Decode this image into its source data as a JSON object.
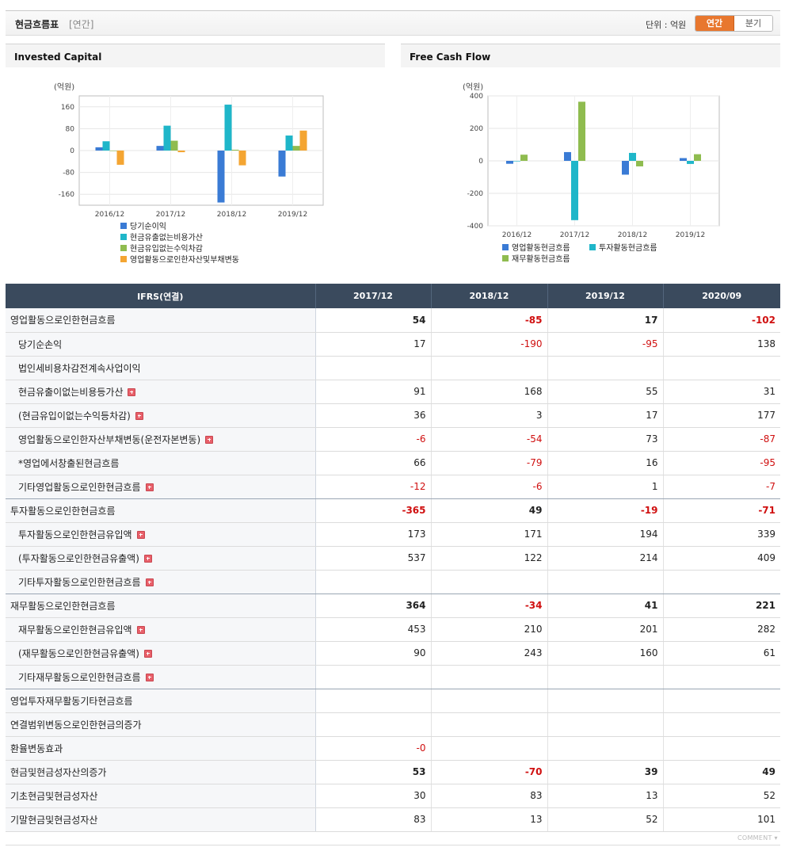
{
  "header": {
    "title": "현금흐름표",
    "sub": "[연간]",
    "unit": "단위 : 억원",
    "tab_annual": "연간",
    "tab_quarter": "분기"
  },
  "colors": {
    "blue": "#3a7bd5",
    "teal": "#1fb6c9",
    "green": "#8fbc4f",
    "orange": "#f4a532",
    "accent": "#e8772e",
    "negative": "#d01010"
  },
  "chart_data": [
    {
      "type": "bar",
      "title": "Invested Capital",
      "unit_label": "(억원)",
      "categories": [
        "2016/12",
        "2017/12",
        "2018/12",
        "2019/12"
      ],
      "ylim": [
        -200,
        200
      ],
      "yticks": [
        160,
        80,
        0,
        -80,
        -160
      ],
      "grid": true,
      "legend_position": "bottom-left",
      "series": [
        {
          "name": "당기순이익",
          "color": "#3a7bd5",
          "values": [
            12,
            17,
            -190,
            -95
          ]
        },
        {
          "name": "현금유출없는비용가산",
          "color": "#1fb6c9",
          "values": [
            34,
            91,
            168,
            55
          ]
        },
        {
          "name": "현금유입없는수익차감",
          "color": "#8fbc4f",
          "values": [
            0,
            36,
            3,
            17
          ]
        },
        {
          "name": "영업활동으로인한자산및부채변동",
          "color": "#f4a532",
          "values": [
            -52,
            -6,
            -54,
            73
          ]
        }
      ]
    },
    {
      "type": "bar",
      "title": "Free Cash Flow",
      "unit_label": "(억원)",
      "categories": [
        "2016/12",
        "2017/12",
        "2018/12",
        "2019/12"
      ],
      "ylim": [
        -400,
        400
      ],
      "yticks": [
        400,
        200,
        0,
        -200,
        -400
      ],
      "grid": true,
      "legend_position": "bottom-center",
      "series": [
        {
          "name": "영업활동현금흐름",
          "color": "#3a7bd5",
          "values": [
            -18,
            54,
            -85,
            17
          ]
        },
        {
          "name": "투자활동현금흐름",
          "color": "#1fb6c9",
          "values": [
            0,
            -365,
            49,
            -19
          ]
        },
        {
          "name": "재무활동현금흐름",
          "color": "#8fbc4f",
          "values": [
            38,
            364,
            -34,
            41
          ]
        }
      ]
    }
  ],
  "table": {
    "col0": "IFRS(연결)",
    "columns": [
      "2017/12",
      "2018/12",
      "2019/12",
      "2020/09"
    ],
    "rows": [
      {
        "label": "영업활동으로인한현금흐름",
        "values": [
          "54",
          "-85",
          "17",
          "-102"
        ],
        "level": 0,
        "bold": true,
        "plus": false
      },
      {
        "label": "당기순손익",
        "values": [
          "17",
          "-190",
          "-95",
          "138"
        ],
        "level": 1,
        "bold": false,
        "plus": false
      },
      {
        "label": "법인세비용차감전계속사업이익",
        "values": [
          "",
          "",
          "",
          ""
        ],
        "level": 1,
        "bold": false,
        "plus": false
      },
      {
        "label": "현금유출이없는비용등가산",
        "values": [
          "91",
          "168",
          "55",
          "31"
        ],
        "level": 1,
        "bold": false,
        "plus": true
      },
      {
        "label": "(현금유입이없는수익등차감)",
        "values": [
          "36",
          "3",
          "17",
          "177"
        ],
        "level": 1,
        "bold": false,
        "plus": true
      },
      {
        "label": "영업활동으로인한자산부채변동(운전자본변동)",
        "values": [
          "-6",
          "-54",
          "73",
          "-87"
        ],
        "level": 1,
        "bold": false,
        "plus": true
      },
      {
        "label": "*영업에서창출된현금흐름",
        "values": [
          "66",
          "-79",
          "16",
          "-95"
        ],
        "level": 1,
        "bold": false,
        "plus": false
      },
      {
        "label": "기타영업활동으로인한현금흐름",
        "values": [
          "-12",
          "-6",
          "1",
          "-7"
        ],
        "level": 1,
        "bold": false,
        "plus": true
      },
      {
        "label": "투자활동으로인한현금흐름",
        "values": [
          "-365",
          "49",
          "-19",
          "-71"
        ],
        "level": 0,
        "bold": true,
        "plus": false
      },
      {
        "label": "투자활동으로인한현금유입액",
        "values": [
          "173",
          "171",
          "194",
          "339"
        ],
        "level": 1,
        "bold": false,
        "plus": true
      },
      {
        "label": "(투자활동으로인한현금유출액)",
        "values": [
          "537",
          "122",
          "214",
          "409"
        ],
        "level": 1,
        "bold": false,
        "plus": true
      },
      {
        "label": "기타투자활동으로인한현금흐름",
        "values": [
          "",
          "",
          "",
          ""
        ],
        "level": 1,
        "bold": false,
        "plus": true
      },
      {
        "label": "재무활동으로인한현금흐름",
        "values": [
          "364",
          "-34",
          "41",
          "221"
        ],
        "level": 0,
        "bold": true,
        "plus": false
      },
      {
        "label": "재무활동으로인한현금유입액",
        "values": [
          "453",
          "210",
          "201",
          "282"
        ],
        "level": 1,
        "bold": false,
        "plus": true
      },
      {
        "label": "(재무활동으로인한현금유출액)",
        "values": [
          "90",
          "243",
          "160",
          "61"
        ],
        "level": 1,
        "bold": false,
        "plus": true
      },
      {
        "label": "기타재무활동으로인한현금흐름",
        "values": [
          "",
          "",
          "",
          ""
        ],
        "level": 1,
        "bold": false,
        "plus": true
      },
      {
        "label": "영업투자재무활동기타현금흐름",
        "values": [
          "",
          "",
          "",
          ""
        ],
        "level": 0,
        "bold": false,
        "plus": false
      },
      {
        "label": "연결범위변동으로인한현금의증가",
        "values": [
          "",
          "",
          "",
          ""
        ],
        "level": 0,
        "bold": false,
        "plus": false
      },
      {
        "label": "환율변동효과",
        "values": [
          "-0",
          "",
          "",
          ""
        ],
        "level": 0,
        "bold": false,
        "plus": false
      },
      {
        "label": "현금및현금성자산의증가",
        "values": [
          "53",
          "-70",
          "39",
          "49"
        ],
        "level": 0,
        "bold": true,
        "plus": false
      },
      {
        "label": "기초현금및현금성자산",
        "values": [
          "30",
          "83",
          "13",
          "52"
        ],
        "level": 0,
        "bold": false,
        "plus": false
      },
      {
        "label": "기말현금및현금성자산",
        "values": [
          "83",
          "13",
          "52",
          "101"
        ],
        "level": 0,
        "bold": false,
        "plus": false
      }
    ]
  },
  "footer": {
    "comment": "COMMENT"
  }
}
